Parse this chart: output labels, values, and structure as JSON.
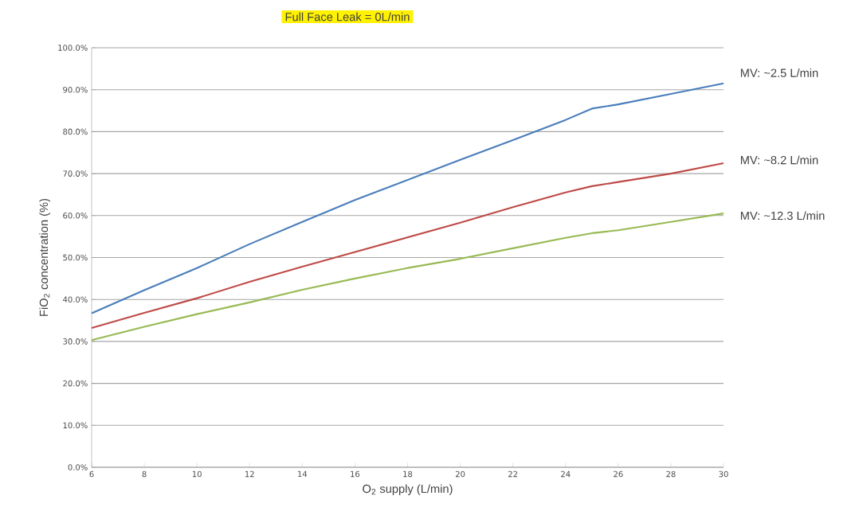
{
  "chart_data": {
    "type": "line",
    "title": "Full Face Leak = 0L/min",
    "xlabel": "O$_{2}$ supply (L/min)",
    "ylabel": "FiO$_{2}$ concentration (%)",
    "x": [
      6,
      8,
      10,
      12,
      14,
      16,
      18,
      20,
      22,
      24,
      25,
      26,
      28,
      30
    ],
    "series": [
      {
        "name": "MV: ~2.5 L/min",
        "color": "#4a7ebb",
        "values": [
          36.7,
          42.2,
          47.5,
          53.2,
          58.5,
          63.7,
          68.5,
          73.3,
          78,
          82.8,
          85.5,
          86.5,
          89,
          91.5
        ]
      },
      {
        "name": "MV: ~8.2 L/min",
        "color": "#be4b48",
        "values": [
          33.2,
          36.8,
          40.3,
          44.2,
          47.8,
          51.3,
          54.8,
          58.3,
          62,
          65.5,
          67,
          68,
          70,
          72.5
        ]
      },
      {
        "name": "MV: ~12.3 L/min",
        "color": "#98b954",
        "values": [
          30.3,
          33.5,
          36.5,
          39.3,
          42.3,
          45,
          47.5,
          49.7,
          52.2,
          54.7,
          55.8,
          56.5,
          58.5,
          60.5
        ]
      }
    ],
    "xlim": [
      6,
      30
    ],
    "xticks": [
      6,
      8,
      10,
      12,
      14,
      16,
      18,
      20,
      22,
      24,
      26,
      28,
      30
    ],
    "ylim": [
      0,
      100
    ],
    "yticks": [
      {
        "value": 0,
        "label": "0.0%"
      },
      {
        "value": 10,
        "label": "10.0%"
      },
      {
        "value": 20,
        "label": "20.0%"
      },
      {
        "value": 30,
        "label": "30.0%"
      },
      {
        "value": 40,
        "label": "40.0%"
      },
      {
        "value": 50,
        "label": "50.0%"
      },
      {
        "value": 60,
        "label": "60.0%"
      },
      {
        "value": 70,
        "label": "70.0%"
      },
      {
        "value": 80,
        "label": "80.0%"
      },
      {
        "value": 90,
        "label": "90.0%"
      },
      {
        "value": 100,
        "label": "100.0%"
      }
    ],
    "grid": "y",
    "legend": false,
    "marker": "none",
    "line_style": "solid"
  }
}
